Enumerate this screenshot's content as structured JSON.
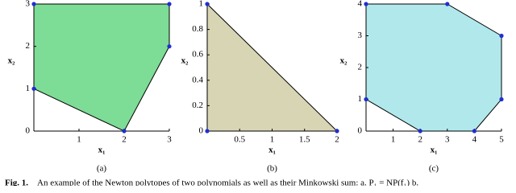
{
  "chart_data": [
    {
      "type": "polygon",
      "panel": "(a)",
      "x_label": "x₁",
      "y_label": "x₂",
      "color": "#7ddc95",
      "x": [
        0,
        0,
        3,
        3,
        2
      ],
      "y": [
        1,
        3,
        3,
        2,
        0
      ],
      "xlim": [
        0,
        3
      ],
      "ylim": [
        0,
        3
      ],
      "xticks": [
        1,
        2,
        3
      ],
      "yticks": [
        0,
        1,
        2,
        3
      ],
      "point_color": "#1f2fd0"
    },
    {
      "type": "polygon",
      "panel": "(b)",
      "x_label": "x₁",
      "y_label": "x₂",
      "color": "#d8d5b5",
      "x": [
        0,
        0,
        2
      ],
      "y": [
        0,
        1,
        0
      ],
      "xlim": [
        0,
        2
      ],
      "ylim": [
        0,
        1
      ],
      "xticks": [
        0.5,
        1,
        1.5,
        2
      ],
      "yticks": [
        0,
        0.2,
        0.4,
        0.6,
        0.8,
        1
      ],
      "point_color": "#1f2fd0"
    },
    {
      "type": "polygon",
      "panel": "(c)",
      "x_label": "x₁",
      "y_label": "x₂",
      "color": "#b1e8ec",
      "x": [
        0,
        0,
        3,
        5,
        5,
        4,
        2
      ],
      "y": [
        1,
        4,
        4,
        3,
        1,
        0,
        0
      ],
      "xlim": [
        0,
        5
      ],
      "ylim": [
        0,
        4
      ],
      "xticks": [
        1,
        2,
        3,
        4,
        5
      ],
      "yticks": [
        0,
        1,
        2,
        3,
        4
      ],
      "point_color": "#1f2fd0"
    }
  ],
  "caption": {
    "label": "Fig. 1.",
    "text": "An example of the Newton polytopes of two polynomials as well as their Minkowski sum: a. P₁ = NP(f₁) b."
  }
}
